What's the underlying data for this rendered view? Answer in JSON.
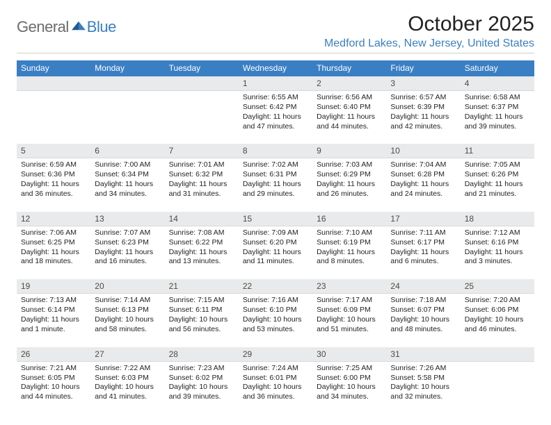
{
  "logo": {
    "general": "General",
    "blue": "Blue"
  },
  "title": "October 2025",
  "location": "Medford Lakes, New Jersey, United States",
  "header_bg": "#3a7fc4",
  "header_fg": "#ffffff",
  "daynum_bg": "#e9eaeb",
  "weekdays": [
    "Sunday",
    "Monday",
    "Tuesday",
    "Wednesday",
    "Thursday",
    "Friday",
    "Saturday"
  ],
  "weeks": [
    [
      {
        "blank": true
      },
      {
        "blank": true
      },
      {
        "blank": true
      },
      {
        "n": "1",
        "sr": "6:55 AM",
        "ss": "6:42 PM",
        "dl": "11 hours and 47 minutes."
      },
      {
        "n": "2",
        "sr": "6:56 AM",
        "ss": "6:40 PM",
        "dl": "11 hours and 44 minutes."
      },
      {
        "n": "3",
        "sr": "6:57 AM",
        "ss": "6:39 PM",
        "dl": "11 hours and 42 minutes."
      },
      {
        "n": "4",
        "sr": "6:58 AM",
        "ss": "6:37 PM",
        "dl": "11 hours and 39 minutes."
      }
    ],
    [
      {
        "n": "5",
        "sr": "6:59 AM",
        "ss": "6:36 PM",
        "dl": "11 hours and 36 minutes."
      },
      {
        "n": "6",
        "sr": "7:00 AM",
        "ss": "6:34 PM",
        "dl": "11 hours and 34 minutes."
      },
      {
        "n": "7",
        "sr": "7:01 AM",
        "ss": "6:32 PM",
        "dl": "11 hours and 31 minutes."
      },
      {
        "n": "8",
        "sr": "7:02 AM",
        "ss": "6:31 PM",
        "dl": "11 hours and 29 minutes."
      },
      {
        "n": "9",
        "sr": "7:03 AM",
        "ss": "6:29 PM",
        "dl": "11 hours and 26 minutes."
      },
      {
        "n": "10",
        "sr": "7:04 AM",
        "ss": "6:28 PM",
        "dl": "11 hours and 24 minutes."
      },
      {
        "n": "11",
        "sr": "7:05 AM",
        "ss": "6:26 PM",
        "dl": "11 hours and 21 minutes."
      }
    ],
    [
      {
        "n": "12",
        "sr": "7:06 AM",
        "ss": "6:25 PM",
        "dl": "11 hours and 18 minutes."
      },
      {
        "n": "13",
        "sr": "7:07 AM",
        "ss": "6:23 PM",
        "dl": "11 hours and 16 minutes."
      },
      {
        "n": "14",
        "sr": "7:08 AM",
        "ss": "6:22 PM",
        "dl": "11 hours and 13 minutes."
      },
      {
        "n": "15",
        "sr": "7:09 AM",
        "ss": "6:20 PM",
        "dl": "11 hours and 11 minutes."
      },
      {
        "n": "16",
        "sr": "7:10 AM",
        "ss": "6:19 PM",
        "dl": "11 hours and 8 minutes."
      },
      {
        "n": "17",
        "sr": "7:11 AM",
        "ss": "6:17 PM",
        "dl": "11 hours and 6 minutes."
      },
      {
        "n": "18",
        "sr": "7:12 AM",
        "ss": "6:16 PM",
        "dl": "11 hours and 3 minutes."
      }
    ],
    [
      {
        "n": "19",
        "sr": "7:13 AM",
        "ss": "6:14 PM",
        "dl": "11 hours and 1 minute."
      },
      {
        "n": "20",
        "sr": "7:14 AM",
        "ss": "6:13 PM",
        "dl": "10 hours and 58 minutes."
      },
      {
        "n": "21",
        "sr": "7:15 AM",
        "ss": "6:11 PM",
        "dl": "10 hours and 56 minutes."
      },
      {
        "n": "22",
        "sr": "7:16 AM",
        "ss": "6:10 PM",
        "dl": "10 hours and 53 minutes."
      },
      {
        "n": "23",
        "sr": "7:17 AM",
        "ss": "6:09 PM",
        "dl": "10 hours and 51 minutes."
      },
      {
        "n": "24",
        "sr": "7:18 AM",
        "ss": "6:07 PM",
        "dl": "10 hours and 48 minutes."
      },
      {
        "n": "25",
        "sr": "7:20 AM",
        "ss": "6:06 PM",
        "dl": "10 hours and 46 minutes."
      }
    ],
    [
      {
        "n": "26",
        "sr": "7:21 AM",
        "ss": "6:05 PM",
        "dl": "10 hours and 44 minutes."
      },
      {
        "n": "27",
        "sr": "7:22 AM",
        "ss": "6:03 PM",
        "dl": "10 hours and 41 minutes."
      },
      {
        "n": "28",
        "sr": "7:23 AM",
        "ss": "6:02 PM",
        "dl": "10 hours and 39 minutes."
      },
      {
        "n": "29",
        "sr": "7:24 AM",
        "ss": "6:01 PM",
        "dl": "10 hours and 36 minutes."
      },
      {
        "n": "30",
        "sr": "7:25 AM",
        "ss": "6:00 PM",
        "dl": "10 hours and 34 minutes."
      },
      {
        "n": "31",
        "sr": "7:26 AM",
        "ss": "5:58 PM",
        "dl": "10 hours and 32 minutes."
      },
      {
        "blank": true
      }
    ]
  ],
  "labels": {
    "sunrise": "Sunrise:",
    "sunset": "Sunset:",
    "daylight": "Daylight:"
  }
}
